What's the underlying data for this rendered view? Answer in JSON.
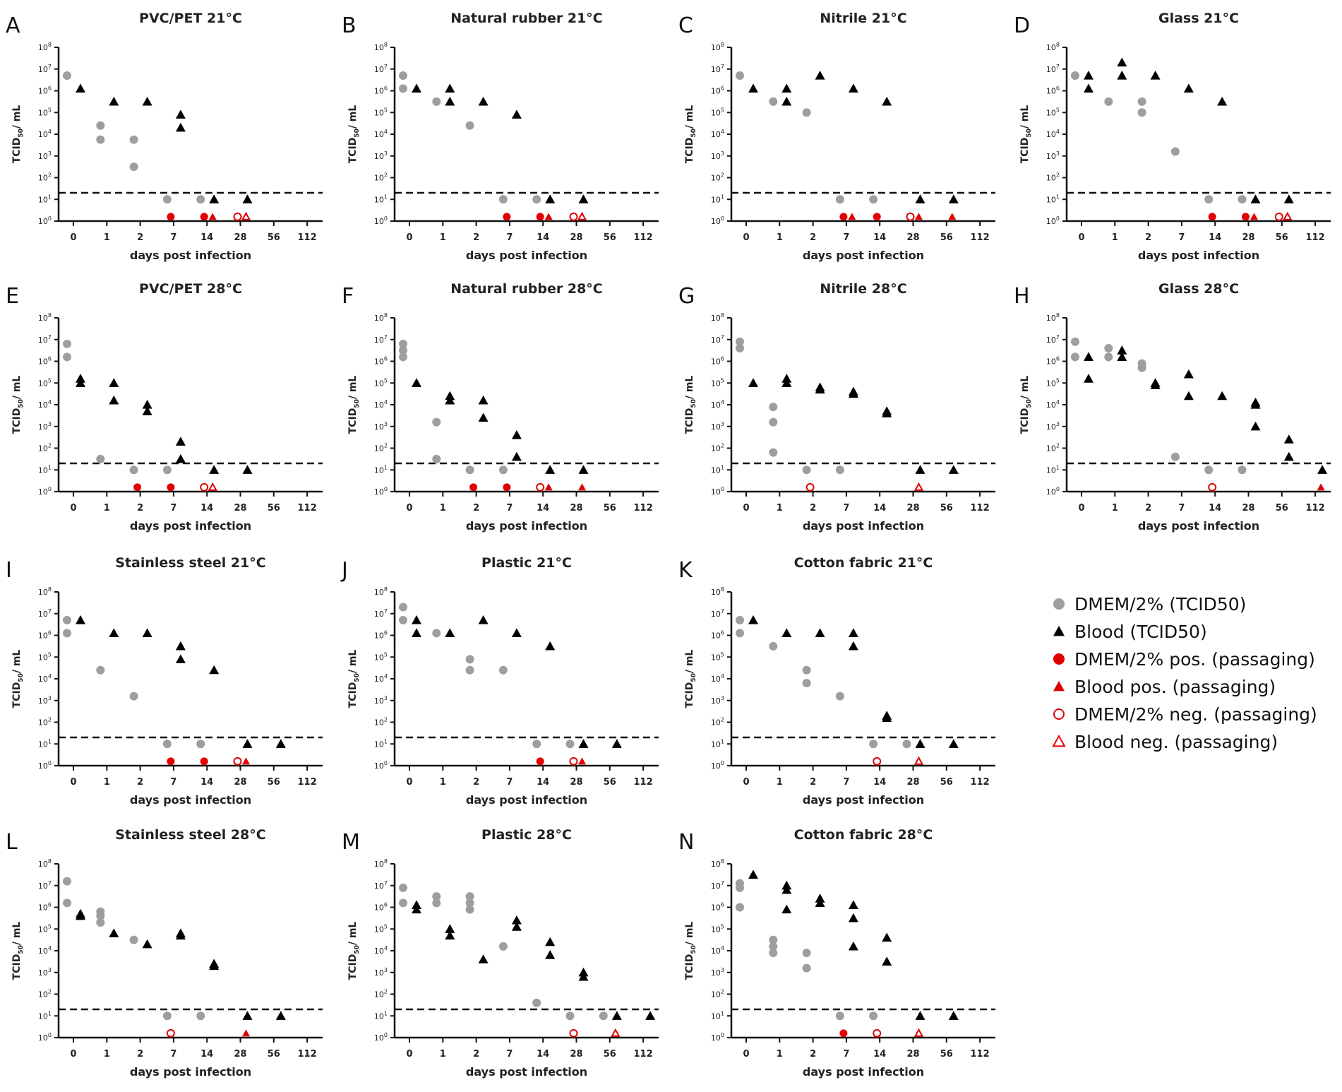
{
  "chart_data": {
    "type": "scatter",
    "x_categories": [
      "0",
      "1",
      "2",
      "7",
      "14",
      "28",
      "56",
      "112"
    ],
    "xlabel": "days post infection",
    "ylabel": "TCID50/ mL",
    "yscale": "log10",
    "ylim_log10": [
      0,
      8
    ],
    "y_ticks": [
      "10^0",
      "10^1",
      "10^2",
      "10^3",
      "10^4",
      "10^5",
      "10^6",
      "10^7",
      "10^8"
    ],
    "detection_limit_log10": 1.3,
    "legend": {
      "placement": "right",
      "entries": [
        {
          "key": "dmem",
          "label": "DMEM/2% (TCID50)"
        },
        {
          "key": "blood",
          "label": "Blood (TCID50)"
        },
        {
          "key": "dmem_pos",
          "label": "DMEM/2% pos. (passaging)"
        },
        {
          "key": "blood_pos",
          "label": "Blood pos. (passaging)"
        },
        {
          "key": "dmem_neg",
          "label": "DMEM/2% neg. (passaging)"
        },
        {
          "key": "blood_neg",
          "label": "Blood neg. (passaging)"
        }
      ]
    },
    "colors": {
      "dmem": "#9e9e9e",
      "blood": "#000000",
      "red": "#e00000"
    },
    "passaging_value_log10": 0.2,
    "panels": [
      {
        "letter": "A",
        "title": "PVC/PET 21°C",
        "dmem": [
          [
            0,
            6.7
          ],
          [
            1,
            4.4
          ],
          [
            1,
            3.75
          ],
          [
            2,
            3.75
          ],
          [
            2,
            2.5
          ],
          [
            7,
            1
          ],
          [
            14,
            1
          ]
        ],
        "blood": [
          [
            0,
            6.1
          ],
          [
            1,
            5.5
          ],
          [
            2,
            5.5
          ],
          [
            7,
            4.9
          ],
          [
            7,
            4.3
          ],
          [
            14,
            1
          ],
          [
            28,
            1
          ]
        ],
        "dmem_pos": [
          7,
          14
        ],
        "blood_pos": [
          14
        ],
        "dmem_neg": [
          28
        ],
        "blood_neg": [
          28
        ]
      },
      {
        "letter": "B",
        "title": "Natural rubber 21°C",
        "dmem": [
          [
            0,
            6.7
          ],
          [
            0,
            6.1
          ],
          [
            1,
            5.5
          ],
          [
            2,
            4.4
          ],
          [
            7,
            1
          ],
          [
            14,
            1
          ]
        ],
        "blood": [
          [
            0,
            6.1
          ],
          [
            1,
            6.1
          ],
          [
            1,
            5.5
          ],
          [
            2,
            5.5
          ],
          [
            7,
            4.9
          ],
          [
            14,
            1
          ],
          [
            28,
            1
          ]
        ],
        "dmem_pos": [
          7,
          14
        ],
        "blood_pos": [
          14
        ],
        "dmem_neg": [
          28
        ],
        "blood_neg": [
          28
        ]
      },
      {
        "letter": "C",
        "title": "Nitrile 21°C",
        "dmem": [
          [
            0,
            6.7
          ],
          [
            1,
            5.5
          ],
          [
            2,
            5.0
          ],
          [
            7,
            1
          ],
          [
            14,
            1
          ]
        ],
        "blood": [
          [
            0,
            6.1
          ],
          [
            1,
            6.1
          ],
          [
            1,
            5.5
          ],
          [
            2,
            6.7
          ],
          [
            7,
            6.1
          ],
          [
            14,
            5.5
          ],
          [
            28,
            1
          ],
          [
            56,
            1
          ]
        ],
        "dmem_pos": [
          7,
          14
        ],
        "blood_pos": [
          7,
          28,
          56
        ],
        "dmem_neg": [
          28
        ],
        "blood_neg": []
      },
      {
        "letter": "D",
        "title": "Glass 21°C",
        "dmem": [
          [
            0,
            6.7
          ],
          [
            1,
            5.5
          ],
          [
            2,
            5.5
          ],
          [
            2,
            5.0
          ],
          [
            7,
            3.2
          ],
          [
            14,
            1
          ],
          [
            28,
            1
          ]
        ],
        "blood": [
          [
            0,
            6.7
          ],
          [
            0,
            6.1
          ],
          [
            1,
            7.3
          ],
          [
            1,
            6.7
          ],
          [
            2,
            6.7
          ],
          [
            7,
            6.1
          ],
          [
            14,
            5.5
          ],
          [
            28,
            1
          ],
          [
            56,
            1
          ]
        ],
        "dmem_pos": [
          14,
          28
        ],
        "blood_pos": [
          28
        ],
        "dmem_neg": [
          56
        ],
        "blood_neg": [
          56
        ]
      },
      {
        "letter": "E",
        "title": "PVC/PET 28°C",
        "dmem": [
          [
            0,
            6.8
          ],
          [
            0,
            6.2
          ],
          [
            1,
            1.5
          ],
          [
            2,
            1
          ],
          [
            7,
            1
          ]
        ],
        "blood": [
          [
            0,
            5.2
          ],
          [
            0,
            5.0
          ],
          [
            1,
            5.0
          ],
          [
            1,
            4.2
          ],
          [
            2,
            4.0
          ],
          [
            2,
            3.7
          ],
          [
            7,
            2.3
          ],
          [
            7,
            1.5
          ],
          [
            14,
            1
          ],
          [
            28,
            1
          ]
        ],
        "dmem_pos": [
          2,
          7
        ],
        "blood_pos": [],
        "dmem_neg": [
          14
        ],
        "blood_neg": [
          14
        ]
      },
      {
        "letter": "F",
        "title": "Natural rubber 28°C",
        "dmem": [
          [
            0,
            6.8
          ],
          [
            0,
            6.5
          ],
          [
            0,
            6.2
          ],
          [
            1,
            3.2
          ],
          [
            1,
            1.5
          ],
          [
            2,
            1
          ],
          [
            7,
            1
          ]
        ],
        "blood": [
          [
            0,
            5.0
          ],
          [
            1,
            4.4
          ],
          [
            1,
            4.2
          ],
          [
            2,
            4.2
          ],
          [
            2,
            3.4
          ],
          [
            7,
            2.6
          ],
          [
            7,
            1.6
          ],
          [
            14,
            1
          ],
          [
            28,
            1
          ]
        ],
        "dmem_pos": [
          2,
          7
        ],
        "blood_pos": [
          14,
          28
        ],
        "dmem_neg": [
          14
        ],
        "blood_neg": []
      },
      {
        "letter": "G",
        "title": "Nitrile 28°C",
        "dmem": [
          [
            0,
            6.9
          ],
          [
            0,
            6.6
          ],
          [
            1,
            3.9
          ],
          [
            1,
            3.2
          ],
          [
            1,
            1.8
          ],
          [
            2,
            1
          ],
          [
            7,
            1
          ]
        ],
        "blood": [
          [
            0,
            5.0
          ],
          [
            1,
            5.2
          ],
          [
            1,
            5.0
          ],
          [
            2,
            4.8
          ],
          [
            2,
            4.7
          ],
          [
            7,
            4.6
          ],
          [
            7,
            4.5
          ],
          [
            14,
            3.7
          ],
          [
            14,
            3.6
          ],
          [
            28,
            1
          ],
          [
            56,
            1
          ]
        ],
        "dmem_pos": [],
        "blood_pos": [],
        "dmem_neg": [
          2
        ],
        "blood_neg": [
          28
        ]
      },
      {
        "letter": "H",
        "title": "Glass 28°C",
        "dmem": [
          [
            0,
            6.9
          ],
          [
            0,
            6.2
          ],
          [
            1,
            6.6
          ],
          [
            1,
            6.2
          ],
          [
            2,
            5.9
          ],
          [
            2,
            5.7
          ],
          [
            7,
            1.6
          ],
          [
            14,
            1
          ],
          [
            28,
            1
          ]
        ],
        "blood": [
          [
            0,
            6.2
          ],
          [
            0,
            5.2
          ],
          [
            1,
            6.5
          ],
          [
            1,
            6.2
          ],
          [
            2,
            5.0
          ],
          [
            2,
            4.9
          ],
          [
            7,
            5.4
          ],
          [
            7,
            4.4
          ],
          [
            14,
            4.4
          ],
          [
            28,
            4.1
          ],
          [
            28,
            4.0
          ],
          [
            28,
            3.0
          ],
          [
            56,
            2.4
          ],
          [
            56,
            1.6
          ],
          [
            112,
            1
          ]
        ],
        "dmem_pos": [],
        "blood_pos": [
          112
        ],
        "dmem_neg": [
          14
        ],
        "blood_neg": []
      },
      {
        "letter": "I",
        "title": "Stainless steel 21°C",
        "dmem": [
          [
            0,
            6.7
          ],
          [
            0,
            6.1
          ],
          [
            1,
            4.4
          ],
          [
            2,
            3.2
          ],
          [
            7,
            1
          ],
          [
            14,
            1
          ]
        ],
        "blood": [
          [
            0,
            6.7
          ],
          [
            1,
            6.1
          ],
          [
            2,
            6.1
          ],
          [
            7,
            5.5
          ],
          [
            7,
            4.9
          ],
          [
            14,
            4.4
          ],
          [
            28,
            1
          ],
          [
            56,
            1
          ]
        ],
        "dmem_pos": [
          7,
          14
        ],
        "blood_pos": [
          28
        ],
        "dmem_neg": [
          28
        ],
        "blood_neg": []
      },
      {
        "letter": "J",
        "title": "Plastic 21°C",
        "dmem": [
          [
            0,
            7.3
          ],
          [
            0,
            6.7
          ],
          [
            1,
            6.1
          ],
          [
            2,
            4.9
          ],
          [
            2,
            4.4
          ],
          [
            7,
            4.4
          ],
          [
            14,
            1
          ],
          [
            28,
            1
          ]
        ],
        "blood": [
          [
            0,
            6.7
          ],
          [
            0,
            6.1
          ],
          [
            1,
            6.1
          ],
          [
            2,
            6.7
          ],
          [
            7,
            6.1
          ],
          [
            14,
            5.5
          ],
          [
            28,
            1
          ],
          [
            56,
            1
          ]
        ],
        "dmem_pos": [
          14
        ],
        "blood_pos": [
          28
        ],
        "dmem_neg": [
          28
        ],
        "blood_neg": []
      },
      {
        "letter": "K",
        "title": "Cotton fabric 21°C",
        "dmem": [
          [
            0,
            6.7
          ],
          [
            0,
            6.1
          ],
          [
            1,
            5.5
          ],
          [
            2,
            4.4
          ],
          [
            2,
            3.8
          ],
          [
            7,
            3.2
          ],
          [
            14,
            1
          ],
          [
            28,
            1
          ]
        ],
        "blood": [
          [
            0,
            6.7
          ],
          [
            1,
            6.1
          ],
          [
            2,
            6.1
          ],
          [
            7,
            6.1
          ],
          [
            7,
            5.5
          ],
          [
            14,
            2.3
          ],
          [
            14,
            2.2
          ],
          [
            28,
            1
          ],
          [
            56,
            1
          ]
        ],
        "dmem_pos": [],
        "blood_pos": [],
        "dmem_neg": [
          14
        ],
        "blood_neg": [
          28
        ]
      },
      {
        "letter": "L",
        "title": "Stainless steel 28°C",
        "dmem": [
          [
            0,
            7.2
          ],
          [
            0,
            6.2
          ],
          [
            1,
            5.8
          ],
          [
            1,
            5.6
          ],
          [
            1,
            5.3
          ],
          [
            2,
            4.5
          ],
          [
            7,
            1
          ],
          [
            14,
            1
          ]
        ],
        "blood": [
          [
            0,
            5.7
          ],
          [
            0,
            5.6
          ],
          [
            1,
            4.8
          ],
          [
            2,
            4.3
          ],
          [
            7,
            4.8
          ],
          [
            7,
            4.7
          ],
          [
            14,
            3.4
          ],
          [
            14,
            3.3
          ],
          [
            28,
            1
          ],
          [
            56,
            1
          ]
        ],
        "dmem_pos": [],
        "blood_pos": [
          28
        ],
        "dmem_neg": [
          7
        ],
        "blood_neg": []
      },
      {
        "letter": "M",
        "title": "Plastic 28°C",
        "dmem": [
          [
            0,
            6.9
          ],
          [
            0,
            6.2
          ],
          [
            1,
            6.5
          ],
          [
            1,
            6.2
          ],
          [
            2,
            6.5
          ],
          [
            2,
            6.2
          ],
          [
            2,
            5.9
          ],
          [
            7,
            4.2
          ],
          [
            14,
            1.6
          ],
          [
            28,
            1
          ],
          [
            56,
            1
          ]
        ],
        "blood": [
          [
            0,
            6.1
          ],
          [
            0,
            5.9
          ],
          [
            1,
            5.0
          ],
          [
            1,
            4.7
          ],
          [
            2,
            3.6
          ],
          [
            7,
            5.4
          ],
          [
            7,
            5.1
          ],
          [
            14,
            4.4
          ],
          [
            14,
            3.8
          ],
          [
            28,
            3.0
          ],
          [
            28,
            2.8
          ],
          [
            56,
            1
          ],
          [
            112,
            1
          ]
        ],
        "dmem_pos": [],
        "blood_pos": [],
        "dmem_neg": [
          28
        ],
        "blood_neg": [
          56
        ]
      },
      {
        "letter": "N",
        "title": "Cotton fabric 28°C",
        "dmem": [
          [
            0,
            7.1
          ],
          [
            0,
            6.9
          ],
          [
            0,
            6.0
          ],
          [
            1,
            4.5
          ],
          [
            1,
            4.2
          ],
          [
            1,
            3.9
          ],
          [
            2,
            3.9
          ],
          [
            2,
            3.2
          ],
          [
            7,
            1
          ],
          [
            14,
            1
          ]
        ],
        "blood": [
          [
            0,
            7.5
          ],
          [
            1,
            7.0
          ],
          [
            1,
            6.8
          ],
          [
            1,
            5.9
          ],
          [
            2,
            6.4
          ],
          [
            2,
            6.2
          ],
          [
            7,
            6.1
          ],
          [
            7,
            5.5
          ],
          [
            7,
            4.2
          ],
          [
            14,
            4.6
          ],
          [
            14,
            3.5
          ],
          [
            28,
            1
          ],
          [
            56,
            1
          ]
        ],
        "dmem_pos": [
          7
        ],
        "blood_pos": [],
        "dmem_neg": [
          14
        ],
        "blood_neg": [
          28
        ]
      }
    ]
  }
}
